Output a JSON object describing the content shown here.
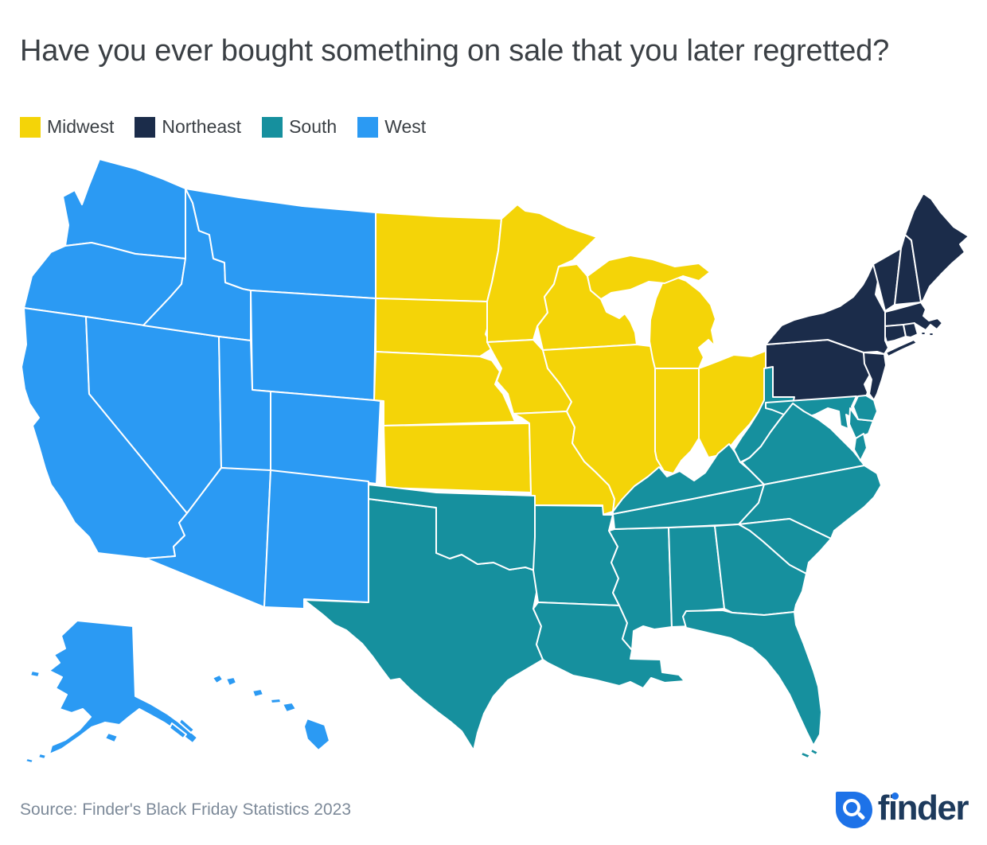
{
  "title": "Have you ever bought something on sale that you later regretted?",
  "legend": [
    {
      "label": "Midwest",
      "color": "#F4D408"
    },
    {
      "label": "Northeast",
      "color": "#1B2C4A"
    },
    {
      "label": "South",
      "color": "#16909E"
    },
    {
      "label": "West",
      "color": "#2B9AF3"
    }
  ],
  "chart_data": {
    "type": "choropleth-region-map",
    "title": "Have you ever bought something on sale that you later regretted?",
    "legend_position": "top-left",
    "regions": [
      {
        "name": "Midwest",
        "color": "#F4D408",
        "states": [
          "ND",
          "SD",
          "NE",
          "KS",
          "MN",
          "IA",
          "MO",
          "WI",
          "IL",
          "MI",
          "IN",
          "OH"
        ]
      },
      {
        "name": "Northeast",
        "color": "#1B2C4A",
        "states": [
          "PA",
          "NY",
          "NJ",
          "VT",
          "NH",
          "ME",
          "MA",
          "CT",
          "RI"
        ]
      },
      {
        "name": "South",
        "color": "#16909E",
        "states": [
          "TX",
          "OK",
          "AR",
          "LA",
          "MS",
          "AL",
          "TN",
          "KY",
          "WV",
          "MD",
          "DE",
          "VA",
          "NC",
          "SC",
          "GA",
          "FL"
        ]
      },
      {
        "name": "West",
        "color": "#2B9AF3",
        "states": [
          "WA",
          "OR",
          "CA",
          "NV",
          "ID",
          "MT",
          "WY",
          "UT",
          "CO",
          "AZ",
          "NM",
          "AK",
          "HI"
        ]
      }
    ],
    "border_color": "#FFFFFF"
  },
  "footer": {
    "source": "Source: Finder's Black Friday Statistics 2023",
    "brand": "finder"
  },
  "colors": {
    "title_text": "#3B4045",
    "source_text": "#7D8A99",
    "logo_blue": "#1D72E8",
    "logo_navy": "#1D3A5C",
    "background": "#FFFFFF"
  }
}
